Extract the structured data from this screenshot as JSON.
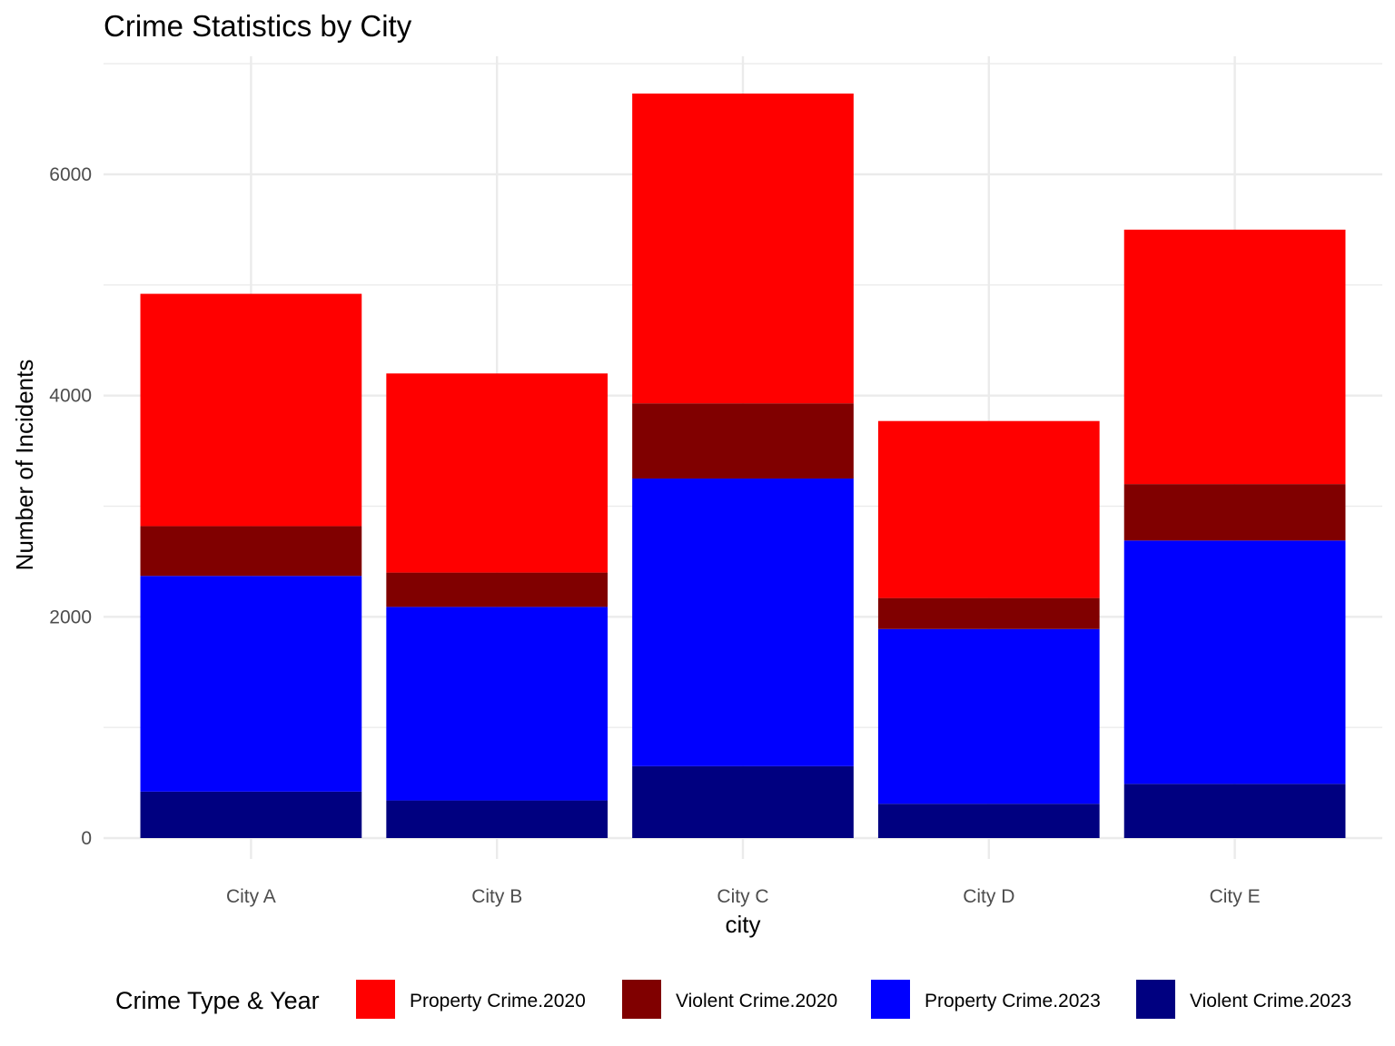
{
  "chart_data": {
    "type": "bar",
    "stacked": true,
    "title": "Crime Statistics by City",
    "xlabel": "city",
    "ylabel": "Number of Incidents",
    "ylim": [
      0,
      7000
    ],
    "yticks": [
      0,
      2000,
      4000,
      6000
    ],
    "grid": true,
    "legend_position": "bottom",
    "legend_title": "Crime Type & Year",
    "categories": [
      "City A",
      "City B",
      "City C",
      "City D",
      "City E"
    ],
    "series": [
      {
        "name": "Violent Crime.2023",
        "color": "#000080",
        "values": [
          420,
          340,
          650,
          310,
          490
        ]
      },
      {
        "name": "Property Crime.2023",
        "color": "#0000FF",
        "values": [
          1950,
          1750,
          2600,
          1580,
          2200
        ]
      },
      {
        "name": "Violent Crime.2020",
        "color": "#800000",
        "values": [
          450,
          310,
          680,
          280,
          510
        ]
      },
      {
        "name": "Property Crime.2020",
        "color": "#FF0000",
        "values": [
          2100,
          1800,
          2800,
          1600,
          2300
        ]
      }
    ],
    "legend_order": [
      "Property Crime.2020",
      "Violent Crime.2020",
      "Property Crime.2023",
      "Violent Crime.2023"
    ]
  }
}
